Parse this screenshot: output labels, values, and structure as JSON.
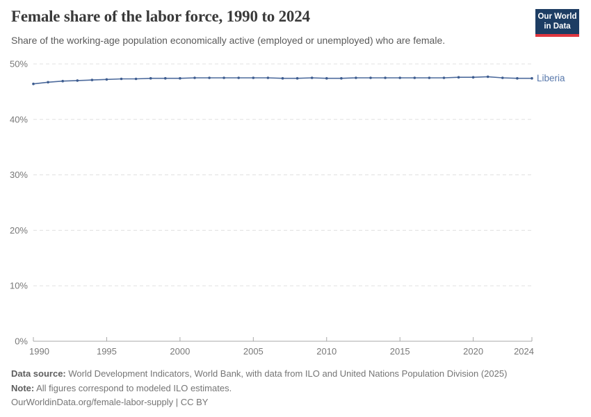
{
  "header": {
    "title": "Female share of the labor force, 1990 to 2024",
    "subtitle": "Share of the working-age population economically active (employed or unemployed) who are female.",
    "logo": {
      "line1": "Our World",
      "line2": "in Data",
      "bg_color": "#1d3d63",
      "accent_color": "#e0373f"
    }
  },
  "chart_data": {
    "type": "line",
    "title": "Female share of the labor force, 1990 to 2024",
    "xlabel": "",
    "ylabel": "",
    "xlim": [
      1990,
      2024
    ],
    "ylim": [
      0,
      50
    ],
    "grid": "horizontal-dashed",
    "legend_position": "line-end-label",
    "x_ticks": [
      1990,
      1995,
      2000,
      2005,
      2010,
      2015,
      2020,
      2024
    ],
    "y_tick_values": [
      0,
      10,
      20,
      30,
      40,
      50
    ],
    "y_tick_labels": [
      "0%",
      "10%",
      "20%",
      "30%",
      "40%",
      "50%"
    ],
    "series": [
      {
        "name": "Liberia",
        "x": [
          1990,
          1991,
          1992,
          1993,
          1994,
          1995,
          1996,
          1997,
          1998,
          1999,
          2000,
          2001,
          2002,
          2003,
          2004,
          2005,
          2006,
          2007,
          2008,
          2009,
          2010,
          2011,
          2012,
          2013,
          2014,
          2015,
          2016,
          2017,
          2018,
          2019,
          2020,
          2021,
          2022,
          2023,
          2024
        ],
        "values": [
          46.4,
          46.7,
          46.9,
          47.0,
          47.1,
          47.2,
          47.3,
          47.3,
          47.4,
          47.4,
          47.4,
          47.5,
          47.5,
          47.5,
          47.5,
          47.5,
          47.5,
          47.4,
          47.4,
          47.5,
          47.4,
          47.4,
          47.5,
          47.5,
          47.5,
          47.5,
          47.5,
          47.5,
          47.5,
          47.6,
          47.6,
          47.7,
          47.5,
          47.4,
          47.4
        ]
      }
    ],
    "style": {
      "line_color": "#4c6a9c",
      "dot_color": "#3d5c8f",
      "entity_label_color": "#5878ab",
      "grid_color": "#e0e0e0",
      "axis_color": "#a8a8a8",
      "tick_label_color": "#787878"
    }
  },
  "footer": {
    "data_source_label": "Data source:",
    "data_source_text": " World Development Indicators, World Bank, with data from ILO and United Nations Population Division (2025)",
    "note_label": "Note:",
    "note_text": " All figures correspond to modeled ILO estimates.",
    "link_text": "OurWorldinData.org/female-labor-supply | CC BY"
  }
}
